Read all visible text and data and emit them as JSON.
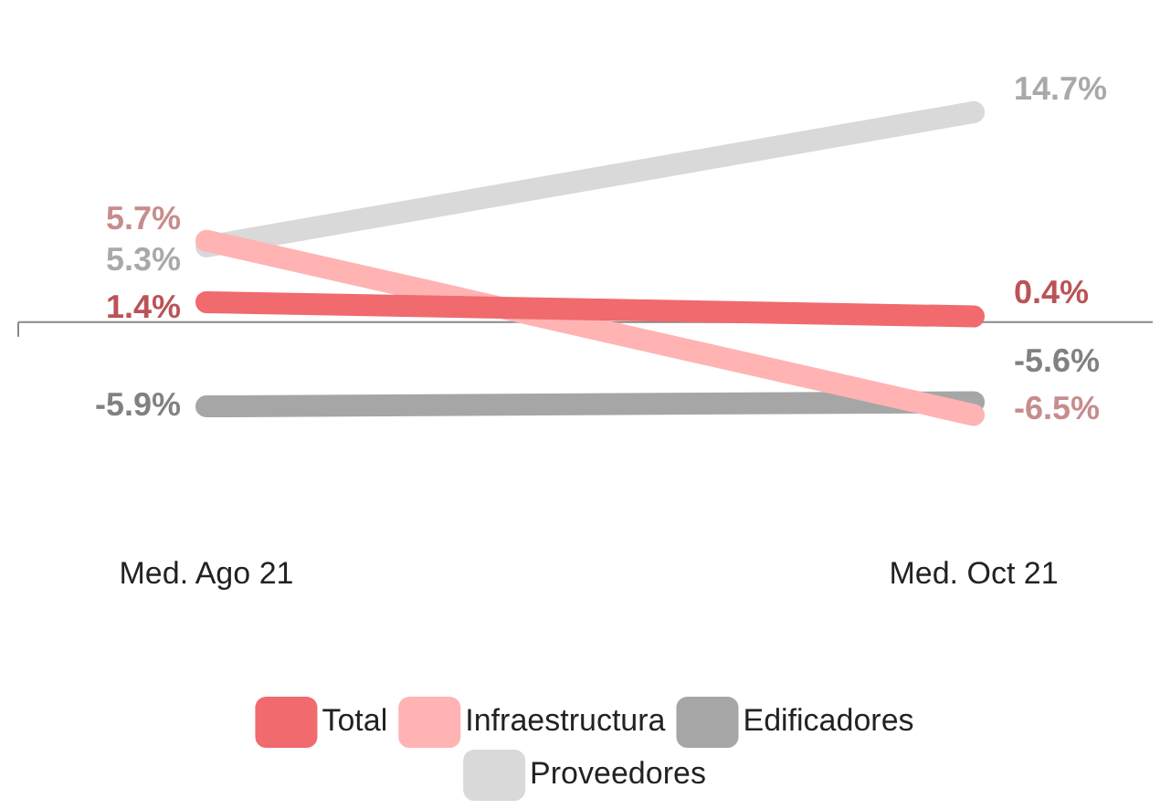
{
  "chart_data": {
    "type": "line",
    "categories": [
      "Med. Ago 21",
      "Med. Oct 21"
    ],
    "series": [
      {
        "name": "Total",
        "color": "#f06a6e",
        "values": [
          1.4,
          0.4
        ],
        "value_labels": [
          "1.4%",
          "0.4%"
        ]
      },
      {
        "name": "Infraestructura",
        "color": "#ffb3b3",
        "values": [
          5.7,
          -6.5
        ],
        "value_labels": [
          "5.7%",
          "-6.5%"
        ]
      },
      {
        "name": "Edificadores",
        "color": "#a6a6a6",
        "values": [
          -5.9,
          -5.6
        ],
        "value_labels": [
          "-5.9%",
          "-5.6%"
        ]
      },
      {
        "name": "Proveedores",
        "color": "#d9d9d9",
        "values": [
          5.3,
          14.7
        ],
        "value_labels": [
          "5.3%",
          "14.7%"
        ]
      }
    ],
    "legend": "bottom",
    "grid": false,
    "marker": "none",
    "line_style": "solid",
    "tick_labels": "x"
  }
}
